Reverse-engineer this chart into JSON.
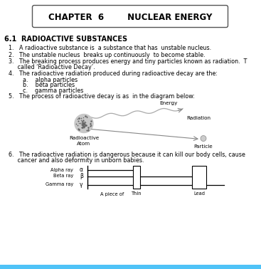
{
  "title_text": "CHAPTER  6        NUCLEAR ENERGY",
  "section_title": "6.1  RADIOACTIVE SUBSTANCES",
  "bg_color": "#ffffff",
  "text_color": "#000000",
  "box_color": "#555555",
  "body_font_size": 5.8,
  "section_font_size": 7.0,
  "title_font_size": 8.5,
  "diagram_font_size": 5.2,
  "bottom_line_color": "#4fc3f7",
  "line1": "1.   A radioactive substance is  a substance that has  unstable nucleus.",
  "line2": "2.   The unstable nucleus  breaks up continuously  to become stable.",
  "line3a": "3.   The breaking process produces energy and tiny particles known as radiation.  T",
  "line3b": "     called ‘Radioactive Decay’.",
  "line4a": "4.   The radioactive radiation produced during radioactive decay are the:",
  "line4b": "        a.    alpha particles",
  "line4c": "        b.    beta particles",
  "line4d": "        c.    gamma particles",
  "line5": "5.   The process of radioactive decay is as  in the diagram below:",
  "line6a": "6.   The radioactive radiation is dangerous because it can kill our body cells, cause",
  "line6b": "     cancer and also deformity in unborn babies."
}
